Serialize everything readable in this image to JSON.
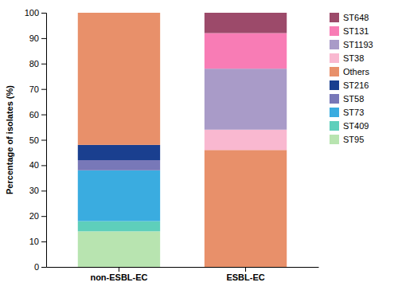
{
  "chart_data": {
    "type": "bar",
    "stacked": true,
    "categories": [
      "non-ESBL-EC",
      "ESBL-EC"
    ],
    "series": [
      {
        "name": "ST95",
        "color": "#b8e4b0",
        "values": [
          14.0,
          0.0
        ]
      },
      {
        "name": "ST409",
        "color": "#5ecfbb",
        "values": [
          4.0,
          0.0
        ]
      },
      {
        "name": "ST73",
        "color": "#3aace0",
        "values": [
          20.0,
          0.0
        ]
      },
      {
        "name": "ST58",
        "color": "#7878b8",
        "values": [
          4.0,
          0.0
        ]
      },
      {
        "name": "ST216",
        "color": "#1a3f8f",
        "values": [
          6.0,
          0.0
        ]
      },
      {
        "name": "Others",
        "color": "#e8906a",
        "values": [
          52.0,
          46.0
        ]
      },
      {
        "name": "ST38",
        "color": "#f9b8d0",
        "values": [
          0.0,
          8.0
        ]
      },
      {
        "name": "ST1193",
        "color": "#a99bc8",
        "values": [
          0.0,
          24.0
        ]
      },
      {
        "name": "ST131",
        "color": "#f87cb5",
        "values": [
          0.0,
          14.0
        ]
      },
      {
        "name": "ST648",
        "color": "#9c4a6a",
        "values": [
          0.0,
          8.0
        ]
      }
    ],
    "ylabel": "Percentage of isolates (%)",
    "ylim": [
      0,
      100
    ],
    "yticks": [
      0,
      10,
      20,
      30,
      40,
      50,
      60,
      70,
      80,
      90,
      100
    ],
    "grid": false,
    "legend": "right"
  }
}
